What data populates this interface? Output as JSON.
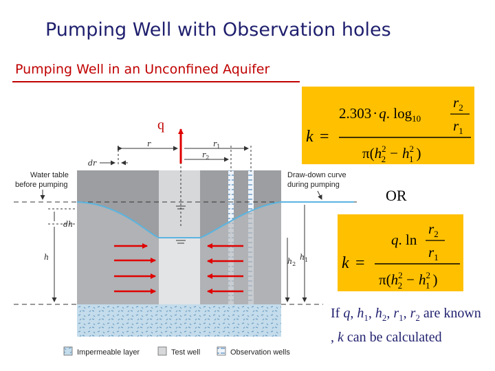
{
  "title": "Pumping Well with Observation holes",
  "subtitle": "Pumping Well in an Unconfined Aquifer",
  "diagram": {
    "q_label": "q",
    "r_label": "r",
    "r1_label": "r",
    "r1_sub": "1",
    "r2_label": "r",
    "r2_sub": "2",
    "dr_label": "dr",
    "dh_label": "dh",
    "h_label": "h",
    "h1_label": "h",
    "h1_sub": "1",
    "h2_label": "h",
    "h2_sub": "2",
    "water_table_line1": "Water table",
    "water_table_line2": "before pumping",
    "drawdown_line1": "Draw-down curve",
    "drawdown_line2": "during pumping",
    "legend": {
      "impermeable": "Impermeable layer",
      "test_well": "Test well",
      "observation": "Observation wells"
    },
    "colors": {
      "soil": "#9c9ea1",
      "water_table": "#5ab4e0",
      "impermeable": "#c4dceb",
      "arrows": "#e00000"
    }
  },
  "formula1": {
    "k": "k",
    "eq": "=",
    "coef": "2.303",
    "dot": "·",
    "q": "q",
    "log": ". log",
    "log_base": "10",
    "r": "r",
    "sub2": "2",
    "sub1": "1",
    "pi": "π",
    "h": "h",
    "sup2": "2",
    "minus": "−"
  },
  "or_text": "OR",
  "formula2": {
    "k": "k",
    "eq": "=",
    "q": "q",
    "ln": ". ln",
    "r": "r",
    "sub2": "2",
    "sub1": "1",
    "pi": "π",
    "h": "h",
    "sup2": "2",
    "minus": "−"
  },
  "note": {
    "p1": "If ",
    "q": "q",
    "c1": ", ",
    "h1": "h",
    "h1_sub": "1",
    "c2": ", ",
    "h2": "h",
    "h2_sub": "2",
    "c3": ", ",
    "r1": "r",
    "r1_sub": "1",
    "c4": ", ",
    "r2": "r",
    "r2_sub": "2",
    "p2": " are known , ",
    "k": "k",
    "p3": " can be calculated"
  }
}
